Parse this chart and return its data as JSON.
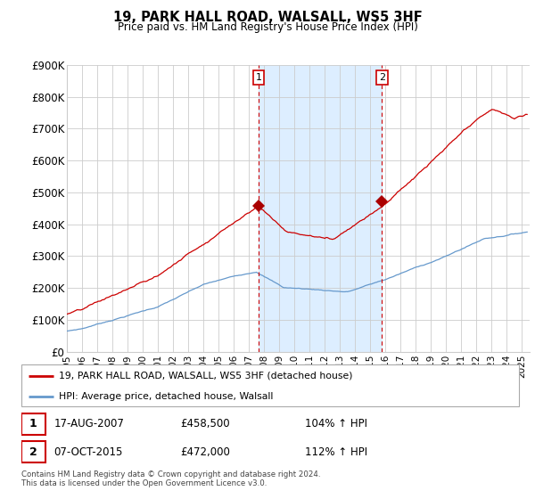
{
  "title": "19, PARK HALL ROAD, WALSALL, WS5 3HF",
  "subtitle": "Price paid vs. HM Land Registry's House Price Index (HPI)",
  "legend_line1": "19, PARK HALL ROAD, WALSALL, WS5 3HF (detached house)",
  "legend_line2": "HPI: Average price, detached house, Walsall",
  "sale1_date": "17-AUG-2007",
  "sale1_price": "£458,500",
  "sale1_hpi": "104% ↑ HPI",
  "sale1_year": 2007.625,
  "sale1_value": 458500,
  "sale2_date": "07-OCT-2015",
  "sale2_price": "£472,000",
  "sale2_hpi": "112% ↑ HPI",
  "sale2_year": 2015.77,
  "sale2_value": 472000,
  "red_color": "#cc0000",
  "blue_color": "#6699cc",
  "highlight_color": "#ddeeff",
  "grid_color": "#cccccc",
  "footer": "Contains HM Land Registry data © Crown copyright and database right 2024.\nThis data is licensed under the Open Government Licence v3.0.",
  "ylim": [
    0,
    900000
  ],
  "yticks": [
    0,
    100000,
    200000,
    300000,
    400000,
    500000,
    600000,
    700000,
    800000,
    900000
  ],
  "ytick_labels": [
    "£0",
    "£100K",
    "£200K",
    "£300K",
    "£400K",
    "£500K",
    "£600K",
    "£700K",
    "£800K",
    "£900K"
  ],
  "xlim_start": 1995.0,
  "xlim_end": 2025.5,
  "marker_color": "#aa0000"
}
